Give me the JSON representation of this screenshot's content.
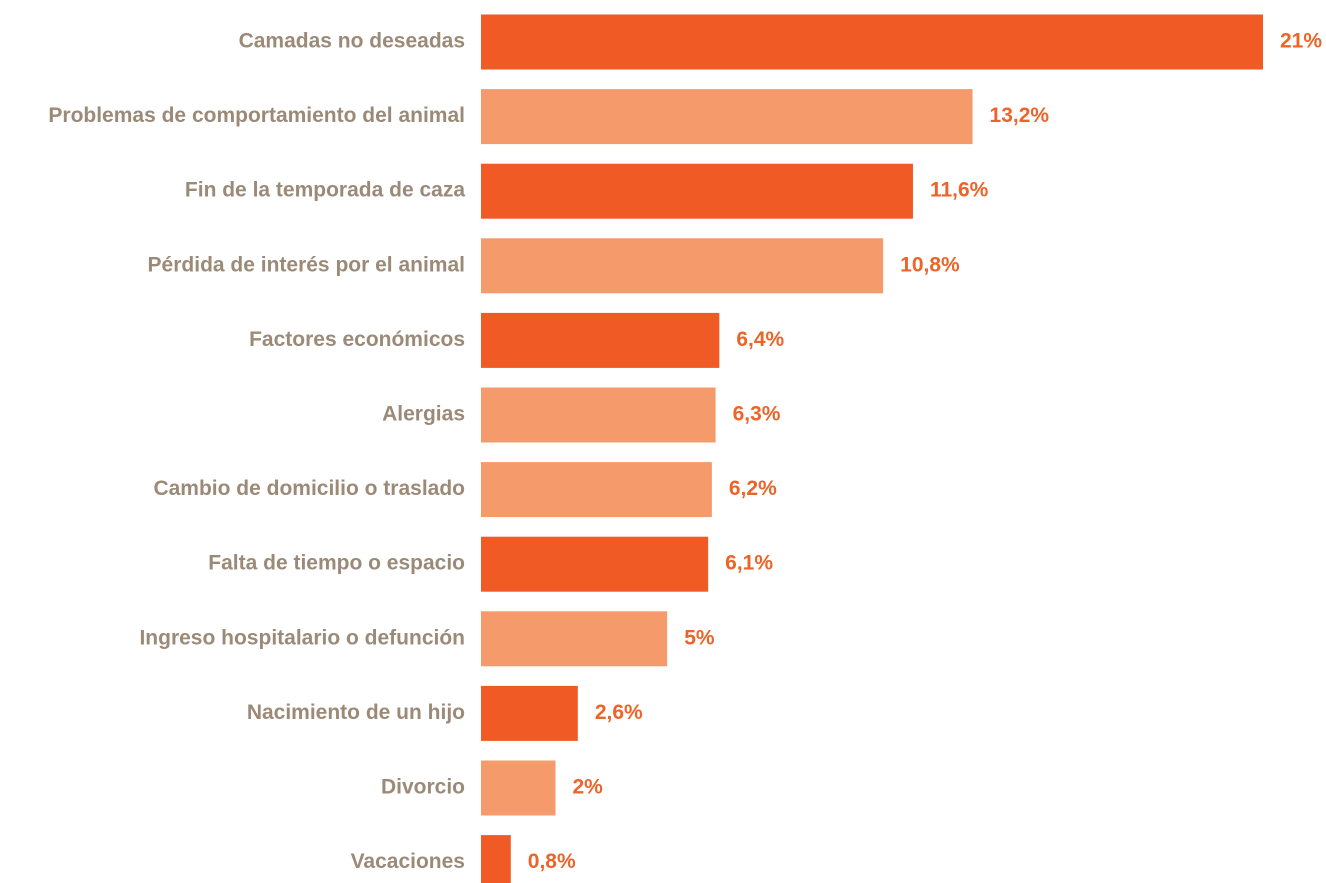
{
  "chart_data": {
    "type": "bar",
    "orientation": "horizontal",
    "categories": [
      "Camadas no deseadas",
      "Problemas de comportamiento del animal",
      "Fin de la temporada de caza",
      "Pérdida de interés por el animal",
      "Factores económicos",
      "Alergias",
      "Cambio de domicilio o traslado",
      "Falta de tiempo o espacio",
      "Ingreso hospitalario o defunción",
      "Nacimiento de un hijo",
      "Divorcio",
      "Vacaciones"
    ],
    "values": [
      21,
      13.2,
      11.6,
      10.8,
      6.4,
      6.3,
      6.2,
      6.1,
      5,
      2.6,
      2,
      0.8
    ],
    "value_labels": [
      "21%",
      "13,2%",
      "11,6%",
      "10,8%",
      "6,4%",
      "6,3%",
      "6,2%",
      "6,1%",
      "5%",
      "2,6%",
      "2%",
      "0,8%"
    ],
    "colors": [
      "#f05a24",
      "#f59b6b",
      "#f05a24",
      "#f59b6b",
      "#f05a24",
      "#f59b6b",
      "#f59b6b",
      "#f05a24",
      "#f59b6b",
      "#f05a24",
      "#f59b6b",
      "#f05a24"
    ],
    "label_color": "#9c8a78",
    "value_label_color": "#ec6428"
  }
}
